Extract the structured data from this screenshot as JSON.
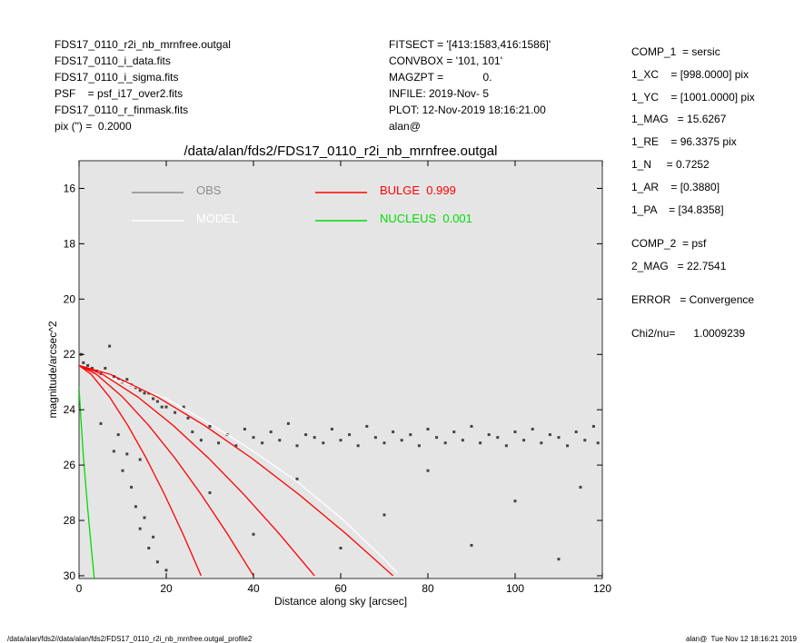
{
  "info_left": [
    "FDS17_0110_r2i_nb_mrnfree.outgal",
    "FDS17_0110_i_data.fits",
    "FDS17_0110_i_sigma.fits",
    "PSF    = psf_i17_over2.fits",
    "FDS17_0110_r_finmask.fits",
    "pix (\") =  0.2000"
  ],
  "info_mid": [
    "FITSECT = '[413:1583,416:1586]'",
    "CONVBOX = '101, 101'",
    "MAGZPT =             0.",
    "INFILE: 2019-Nov- 5",
    "PLOT: 12-Nov-2019 18:16:21.00",
    "alan@"
  ],
  "info_right": [
    "COMP_1  = sersic",
    "1_XC    = [998.0000] pix",
    "1_YC    = [1001.0000] pix",
    "1_MAG   = 15.6267",
    "1_RE    = 96.3375 pix",
    "1_N     = 0.7252",
    "1_AR    = [0.3880]",
    "1_PA    = [34.8358]",
    "COMP_2  = psf",
    "2_MAG   = 22.7541",
    "ERROR   = Convergence",
    "Chi2/nu=      1.0009239"
  ],
  "footer_left": "/data/alan/fds2//data/alan/fds2/FDS17_0110_r2i_nb_mrnfree.outgal_profile2",
  "footer_right": "alan@  Tue Nov 12 18:16:21 2019",
  "chart_data": {
    "type": "scatter",
    "title": "/data/alan/fds2/FDS17_0110_r2i_nb_mrnfree.outgal",
    "x_label": "Distance along sky [arcsec]",
    "y_label": "magnitude/arcsec^2",
    "xlim": [
      0,
      120
    ],
    "ylim": [
      30.1,
      15
    ],
    "xticks": [
      0,
      20,
      40,
      60,
      80,
      100,
      120
    ],
    "yticks": [
      16,
      18,
      20,
      22,
      24,
      26,
      28,
      30
    ],
    "background": "#e5e5e5",
    "series": [
      {
        "name": "OBS",
        "color": "#444444",
        "legend_color": "#8c8c8c",
        "mode": "markers",
        "x": [
          0.5,
          1,
          2,
          3,
          4,
          5,
          6,
          7,
          8,
          9,
          10,
          11,
          12,
          13,
          14,
          15,
          16,
          17,
          18,
          19,
          20,
          22,
          24,
          25,
          5,
          8,
          10,
          12,
          13,
          14,
          15,
          16,
          17,
          18,
          20,
          11,
          9,
          14,
          26,
          28,
          30,
          32,
          34,
          36,
          38,
          40,
          42,
          44,
          46,
          48,
          50,
          52,
          54,
          56,
          58,
          60,
          62,
          64,
          66,
          68,
          70,
          72,
          74,
          76,
          78,
          80,
          82,
          84,
          86,
          88,
          90,
          92,
          94,
          96,
          98,
          100,
          102,
          104,
          106,
          108,
          110,
          112,
          114,
          116,
          118,
          119,
          30,
          40,
          50,
          60,
          70,
          80,
          90,
          100,
          110,
          115
        ],
        "values": [
          22.0,
          22.3,
          22.4,
          22.5,
          22.6,
          22.7,
          22.5,
          21.7,
          22.8,
          22.9,
          23.0,
          22.9,
          23.1,
          23.2,
          23.3,
          23.4,
          23.4,
          23.6,
          23.7,
          23.9,
          23.9,
          24.1,
          23.9,
          24.3,
          24.5,
          25.5,
          26.2,
          26.8,
          27.5,
          28.3,
          27.9,
          29.0,
          28.6,
          29.5,
          29.8,
          25.6,
          24.9,
          25.8,
          24.8,
          25.1,
          24.6,
          25.2,
          24.9,
          25.3,
          24.7,
          25.0,
          25.2,
          24.8,
          25.1,
          24.5,
          25.3,
          24.9,
          25.0,
          25.2,
          24.7,
          25.1,
          24.9,
          25.3,
          24.6,
          25.0,
          25.2,
          24.8,
          25.1,
          24.9,
          25.3,
          24.7,
          25.0,
          25.2,
          24.8,
          25.1,
          24.6,
          25.2,
          24.9,
          25.0,
          25.3,
          24.8,
          25.1,
          24.7,
          25.2,
          24.9,
          25.0,
          25.3,
          24.8,
          25.1,
          24.6,
          25.2,
          27.0,
          28.5,
          26.5,
          29.0,
          27.8,
          26.2,
          28.9,
          27.3,
          29.4,
          26.8
        ]
      },
      {
        "name": "MODEL",
        "color": "#ffffff",
        "mode": "lines",
        "x": [
          0,
          10,
          20,
          30,
          40,
          50,
          60,
          70,
          73
        ],
        "values": [
          22.4,
          23.0,
          23.6,
          24.5,
          25.5,
          26.6,
          27.9,
          29.4,
          29.9
        ]
      },
      {
        "name": "BULGE  0.999",
        "color": "#ff0000",
        "mode": "lines",
        "x": [
          0,
          2.8,
          7,
          11.2,
          15.4,
          19.6,
          23.8,
          28,
          null,
          0,
          4,
          10,
          16,
          22,
          28,
          34,
          40,
          null,
          0,
          5.4,
          13.5,
          21.6,
          29.7,
          37.8,
          45.9,
          54,
          null,
          0,
          7.2,
          18,
          28.8,
          39.6,
          50.4,
          61.2,
          72
        ],
        "values": [
          22.4,
          22.72,
          23.54,
          24.57,
          25.75,
          27.06,
          28.48,
          30.0,
          null,
          22.4,
          22.72,
          23.54,
          24.57,
          25.75,
          27.06,
          28.48,
          30.0,
          null,
          22.4,
          22.72,
          23.54,
          24.57,
          25.75,
          27.06,
          28.48,
          30.0,
          null,
          22.4,
          22.72,
          23.54,
          24.57,
          25.75,
          27.06,
          28.48,
          30.0
        ]
      },
      {
        "name": "NUCLEUS  0.001",
        "color": "#00dd00",
        "mode": "lines",
        "x": [
          0,
          0.5,
          1,
          2,
          3,
          3.5
        ],
        "values": [
          23.2,
          24.5,
          25.7,
          27.6,
          29.3,
          30.1
        ]
      }
    ]
  }
}
